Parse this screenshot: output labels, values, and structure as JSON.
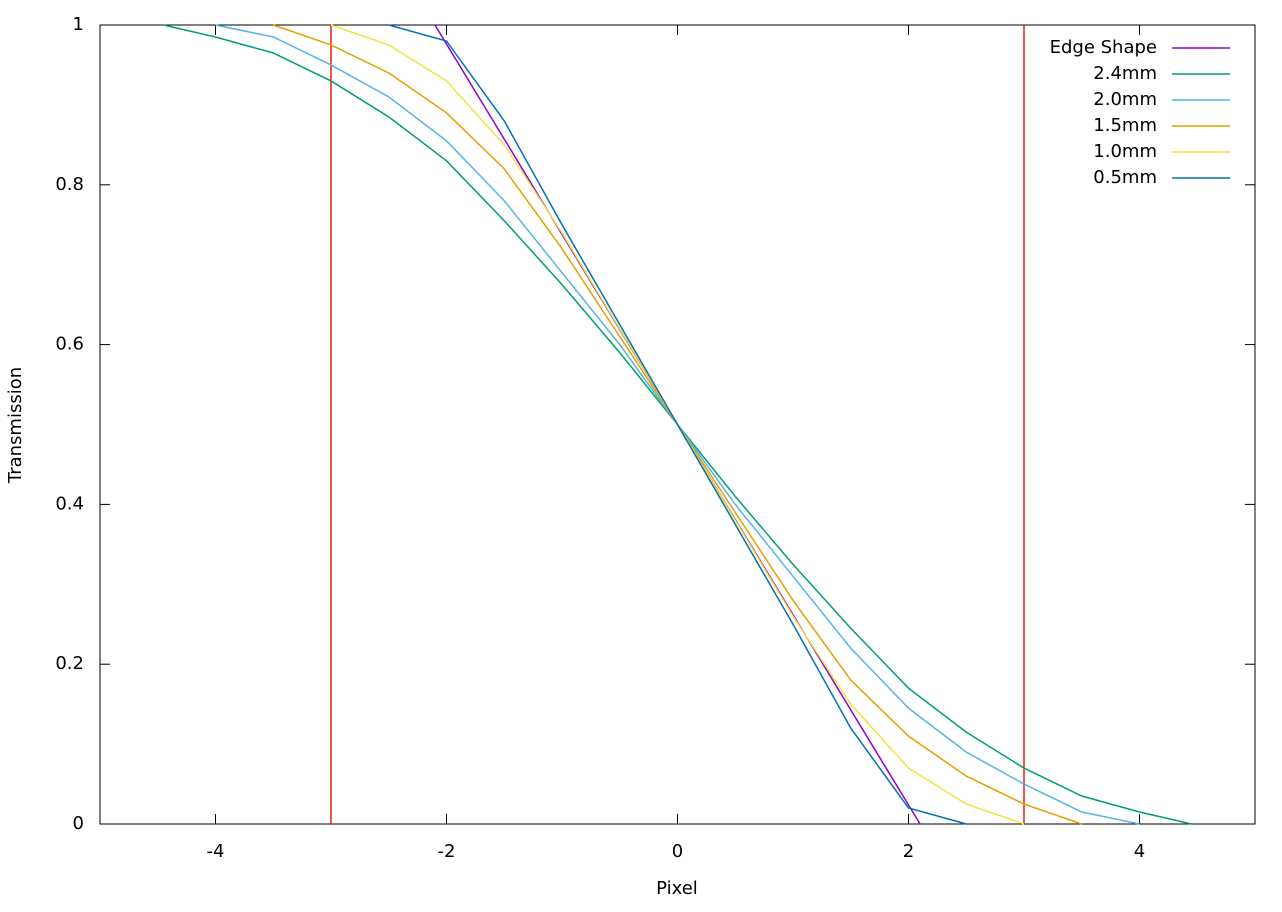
{
  "chart_data": {
    "type": "line",
    "xlabel": "Pixel",
    "ylabel": "Transmission",
    "xlim": [
      -5,
      5
    ],
    "ylim": [
      0,
      1
    ],
    "xticks": [
      -4,
      -2,
      0,
      2,
      4
    ],
    "yticks": [
      0,
      0.2,
      0.4,
      0.6,
      0.8,
      1
    ],
    "legend": "upper right",
    "vlines": [
      -3,
      3
    ],
    "vline_color": "#e51e10",
    "series": [
      {
        "name": "Edge Shape",
        "color": "#9400d3",
        "x": [
          -2.1,
          2.1
        ],
        "values": [
          1,
          0
        ]
      },
      {
        "name": "2.4mm",
        "color": "#009e73",
        "x": [
          -4.45,
          -4,
          -3.5,
          -3,
          -2.5,
          -2,
          -1.5,
          -1,
          -0.5,
          0,
          0.5,
          1,
          1.5,
          2,
          2.5,
          3,
          3.5,
          4,
          4.45
        ],
        "values": [
          1,
          0.985,
          0.965,
          0.93,
          0.885,
          0.83,
          0.755,
          0.675,
          0.59,
          0.5,
          0.41,
          0.325,
          0.245,
          0.17,
          0.115,
          0.07,
          0.035,
          0.015,
          0
        ]
      },
      {
        "name": "2.0mm",
        "color": "#56b4e9",
        "x": [
          -4,
          -3.5,
          -3,
          -2.5,
          -2,
          -1.5,
          -1,
          -0.5,
          0,
          0.5,
          1,
          1.5,
          2,
          2.5,
          3,
          3.5,
          4
        ],
        "values": [
          1,
          0.985,
          0.95,
          0.91,
          0.855,
          0.78,
          0.69,
          0.6,
          0.5,
          0.4,
          0.31,
          0.22,
          0.145,
          0.09,
          0.05,
          0.015,
          0
        ]
      },
      {
        "name": "1.5mm",
        "color": "#e69f00",
        "x": [
          -3.5,
          -3,
          -2.5,
          -2,
          -1.5,
          -1,
          -0.5,
          0,
          0.5,
          1,
          1.5,
          2,
          2.5,
          3,
          3.5
        ],
        "values": [
          1,
          0.975,
          0.94,
          0.89,
          0.82,
          0.72,
          0.61,
          0.5,
          0.39,
          0.28,
          0.18,
          0.11,
          0.06,
          0.025,
          0
        ]
      },
      {
        "name": "1.0mm",
        "color": "#f0e442",
        "x": [
          -3,
          -2.5,
          -2,
          -1.5,
          -1,
          -0.5,
          0,
          0.5,
          1,
          1.5,
          2,
          2.5,
          3
        ],
        "values": [
          1,
          0.975,
          0.93,
          0.85,
          0.74,
          0.62,
          0.5,
          0.38,
          0.26,
          0.15,
          0.07,
          0.025,
          0
        ]
      },
      {
        "name": "0.5mm",
        "color": "#0072b2",
        "x": [
          -2.5,
          -2,
          -1.5,
          -1,
          -0.5,
          0,
          0.5,
          1,
          1.5,
          2,
          2.5
        ],
        "values": [
          1,
          0.98,
          0.88,
          0.75,
          0.625,
          0.5,
          0.375,
          0.25,
          0.12,
          0.02,
          0
        ]
      }
    ]
  }
}
